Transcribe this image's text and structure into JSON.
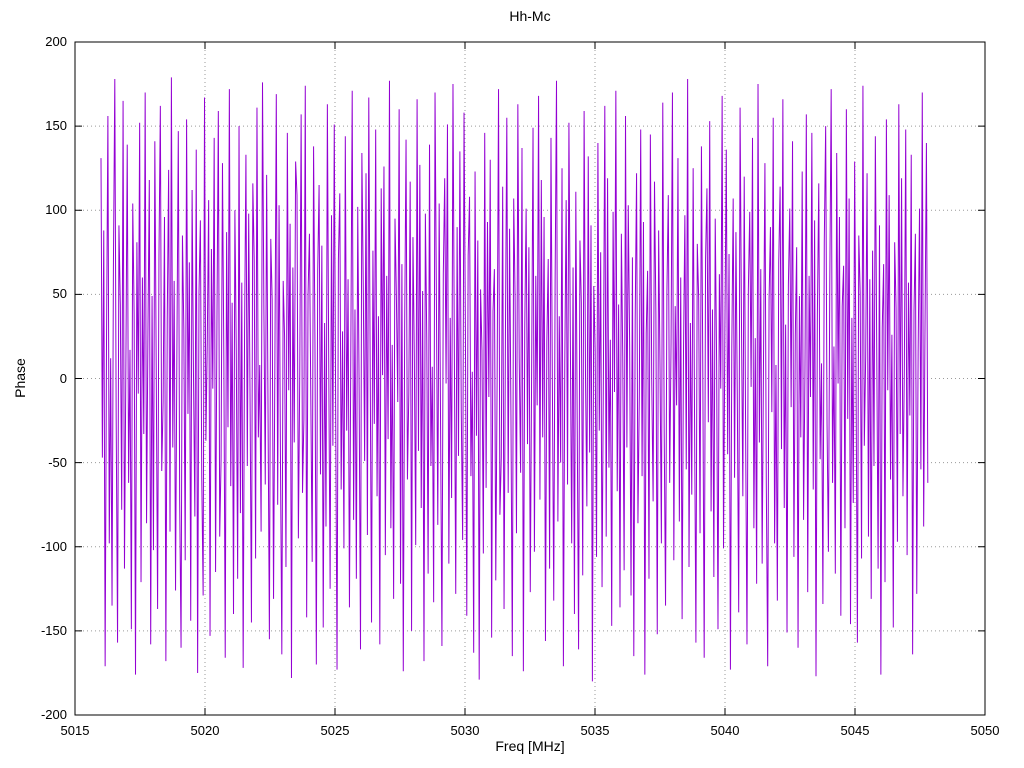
{
  "title": "Hh-Mc",
  "axes": {
    "x_label": "Freq [MHz]",
    "y_label": "Phase"
  },
  "chart_data": {
    "type": "line",
    "title": "Hh-Mc",
    "xlabel": "Freq [MHz]",
    "ylabel": "Phase",
    "xlim": [
      5015,
      5050
    ],
    "ylim": [
      -200,
      200
    ],
    "x_ticks": [
      5015,
      5020,
      5025,
      5030,
      5035,
      5040,
      5045,
      5050
    ],
    "y_ticks": [
      -200,
      -150,
      -100,
      -50,
      0,
      50,
      100,
      150,
      200
    ],
    "grid": true,
    "legend": "none",
    "line_color": "#9400d3",
    "series": [
      {
        "name": "Hh-Mc",
        "x_start": 5016.0,
        "x_end": 5047.8,
        "values": [
          131,
          -47,
          88,
          -171,
          23,
          156,
          -98,
          12,
          -135,
          67,
          178,
          -24,
          -157,
          91,
          44,
          -78,
          165,
          -113,
          5,
          139,
          -62,
          17,
          -149,
          104,
          38,
          -176,
          81,
          -9,
          152,
          -121,
          60,
          -33,
          170,
          -86,
          27,
          118,
          -158,
          49,
          -102,
          141,
          8,
          -137,
          73,
          162,
          -55,
          -14,
          96,
          -168,
          35,
          124,
          -91,
          179,
          -41,
          58,
          -126,
          19,
          147,
          -73,
          -160,
          85,
          30,
          -108,
          154,
          -21,
          69,
          -144,
          112,
          3,
          -82,
          136,
          -175,
          51,
          94,
          -59,
          -129,
          167,
          -37,
          22,
          106,
          -153,
          77,
          -6,
          143,
          -115,
          34,
          159,
          -94,
          -48,
          128,
          11,
          -166,
          87,
          -29,
          172,
          -64,
          45,
          -140,
          100,
          16,
          -119,
          150,
          -80,
          57,
          -172,
          26,
          133,
          -52,
          98,
          -13,
          -145,
          116,
          70,
          -107,
          161,
          -35,
          8,
          -91,
          176,
          42,
          -63,
          121,
          -18,
          -155,
          83,
          47,
          -131,
          14,
          169,
          -75,
          103,
          -46,
          -164,
          58,
          25,
          -112,
          146,
          -7,
          92,
          -178,
          66,
          -38,
          129,
          109,
          -95,
          3,
          157,
          -68,
          -24,
          174,
          -142,
          50,
          86,
          -12,
          -109,
          138,
          21,
          -170,
          64,
          115,
          -57,
          79,
          -148,
          33,
          -88,
          163,
          6,
          -125,
          97,
          -40,
          151,
          -17,
          -173,
          71,
          110,
          -66,
          28,
          -101,
          144,
          -31,
          59,
          -136,
          18,
          171,
          -84,
          41,
          -119,
          102,
          -5,
          -161,
          134,
          55,
          -49,
          122,
          -93,
          167,
          10,
          -145,
          76,
          -27,
          148,
          -70,
          37,
          -158,
          113,
          2,
          126,
          -105,
          61,
          -36,
          177,
          -89,
          20,
          -131,
          95,
          49,
          -14,
          160,
          -122,
          68,
          -174,
          31,
          142,
          -60,
          -9,
          117,
          -150,
          84,
          13,
          -99,
          166,
          -43,
          127,
          -77,
          52,
          -168,
          98,
          24,
          -116,
          139,
          -52,
          7,
          -133,
          170,
          46,
          -87,
          104,
          -26,
          -159,
          62,
          119,
          -3,
          151,
          -110,
          36,
          -71,
          175,
          15,
          -128,
          90,
          -46,
          135,
          -19,
          -96,
          158,
          29,
          -141,
          73,
          108,
          -58,
          4,
          -163,
          123,
          -34,
          82,
          -179,
          53,
          17,
          -104,
          146,
          -65,
          93,
          -11,
          130,
          -154,
          40,
          65,
          -120,
          1,
          172,
          -81,
          -47,
          114,
          -137,
          26,
          155,
          -68,
          89,
          -22,
          -165,
          107,
          48,
          -92,
          163,
          12,
          -56,
          137,
          -174,
          30,
          101,
          -39,
          78,
          -127,
          5,
          149,
          -103,
          61,
          -16,
          168,
          -72,
          118,
          -35,
          96,
          -156,
          22,
          71,
          -113,
          143,
          -2,
          -132,
          58,
          177,
          -85,
          37,
          -50,
          125,
          -171,
          9,
          106,
          -63,
          152,
          28,
          -98,
          66,
          -140,
          111,
          -25,
          -161,
          82,
          45,
          -117,
          159,
          3,
          -76,
          132,
          -44,
          91,
          -180,
          55,
          17,
          -106,
          140,
          -31,
          75,
          -124,
          6,
          162,
          -94,
          119,
          -53,
          23,
          -147,
          99,
          -8,
          171,
          -67,
          44,
          -136,
          86,
          13,
          -114,
          156,
          -41,
          103,
          19,
          -129,
          72,
          -165,
          34,
          122,
          -86,
          -10,
          148,
          -58,
          93,
          -176,
          27,
          64,
          -119,
          145,
          -1,
          -73,
          117,
          39,
          -152,
          88,
          7,
          -98,
          164,
          -29,
          -135,
          52,
          109,
          -62,
          21,
          170,
          -108,
          43,
          -16,
          131,
          -85,
          60,
          -143,
          15,
          97,
          -54,
          178,
          -112,
          33,
          -69,
          125,
          -21,
          -157,
          80,
          48,
          -92,
          138,
          4,
          -166,
          71,
          113,
          -26,
          153,
          -79,
          41,
          -118,
          95,
          10,
          -149,
          62,
          -6,
          168,
          -101,
          29,
          136,
          -45,
          74,
          -173,
          18,
          107,
          -59,
          87,
          -12,
          -139,
          161,
          35,
          -70,
          120,
          -30,
          -158,
          53,
          99,
          -5,
          143,
          -89,
          24,
          -122,
          175,
          -38,
          65,
          -110,
          14,
          128,
          -63,
          -171,
          47,
          90,
          -20,
          155,
          -98,
          8,
          -132,
          69,
          114,
          -42,
          166,
          -77,
          32,
          -151,
          56,
          101,
          -17,
          141,
          -106,
          25,
          78,
          -160,
          49,
          -35,
          123,
          -84,
          3,
          157,
          -127,
          61,
          -11,
          146,
          -66,
          94,
          -177,
          38,
          116,
          -48,
          9,
          -134,
          81,
          150,
          -27,
          -103,
          58,
          172,
          -62,
          19,
          -116,
          134,
          -3,
          96,
          -141,
          43,
          67,
          -89,
          160,
          -24,
          107,
          -146,
          36,
          -74,
          129,
          2,
          -157,
          85,
          51,
          -107,
          174,
          -40,
          13,
          122,
          -94,
          59,
          -131,
          76,
          -52,
          144,
          18,
          -113,
          91,
          -176,
          30,
          68,
          -121,
          154,
          -7,
          109,
          -60,
          26,
          -148,
          81,
          42,
          -97,
          163,
          -33,
          119,
          -70,
          5,
          148,
          -105,
          57,
          -22,
          133,
          -164,
          40,
          86,
          -128,
          16,
          101,
          -54,
          170,
          -88,
          33,
          140,
          -62
        ]
      }
    ]
  }
}
